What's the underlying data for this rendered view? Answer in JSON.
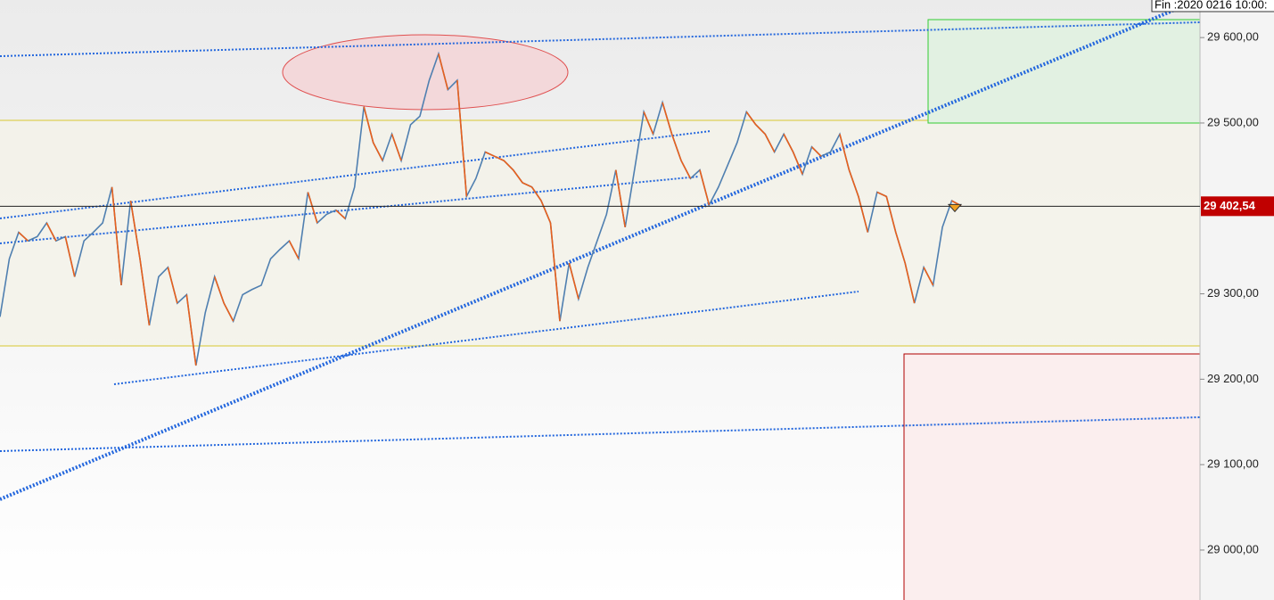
{
  "chart_data": {
    "type": "line",
    "header": "Fin :2020 0216 10:00:",
    "ylim": [
      28941.5,
      29644
    ],
    "yticks": [
      {
        "value": 29600,
        "label": "29 600,00"
      },
      {
        "value": 29500,
        "label": "29 500,00"
      },
      {
        "value": 29300,
        "label": "29 300,00"
      },
      {
        "value": 29200,
        "label": "29 200,00"
      },
      {
        "value": 29100,
        "label": "29 100,00"
      },
      {
        "value": 29000,
        "label": "29 000,00"
      }
    ],
    "last_price": {
      "value": 29402.54,
      "label": "29 402,54"
    },
    "series": [
      {
        "color": "#4f7fb0",
        "down_color": "#e8601c",
        "values": [
          29273,
          29341,
          29372,
          29362,
          29367,
          29383,
          29362,
          29367,
          29320,
          29362,
          29372,
          29383,
          29425,
          29310,
          29409,
          29341,
          29263,
          29320,
          29331,
          29289,
          29299,
          29216,
          29278,
          29320,
          29289,
          29268,
          29299,
          29305,
          29310,
          29341,
          29352,
          29362,
          29341,
          29419,
          29383,
          29393,
          29398,
          29388,
          29425,
          29519,
          29477,
          29456,
          29487,
          29456,
          29498,
          29508,
          29550,
          29581,
          29539,
          29550,
          29414,
          29435,
          29466,
          29461,
          29456,
          29445,
          29430,
          29425,
          29409,
          29383,
          29268,
          29336,
          29294,
          29331,
          29362,
          29393,
          29445,
          29378,
          29445,
          29513,
          29487,
          29524,
          29487,
          29456,
          29435,
          29445,
          29404,
          29425,
          29451,
          29477,
          29513,
          29498,
          29487,
          29466,
          29487,
          29466,
          29440,
          29472,
          29461,
          29466,
          29487,
          29445,
          29414,
          29372,
          29419,
          29414,
          29372,
          29336,
          29289,
          29331,
          29310,
          29378,
          29409,
          29403
        ]
      }
    ]
  }
}
